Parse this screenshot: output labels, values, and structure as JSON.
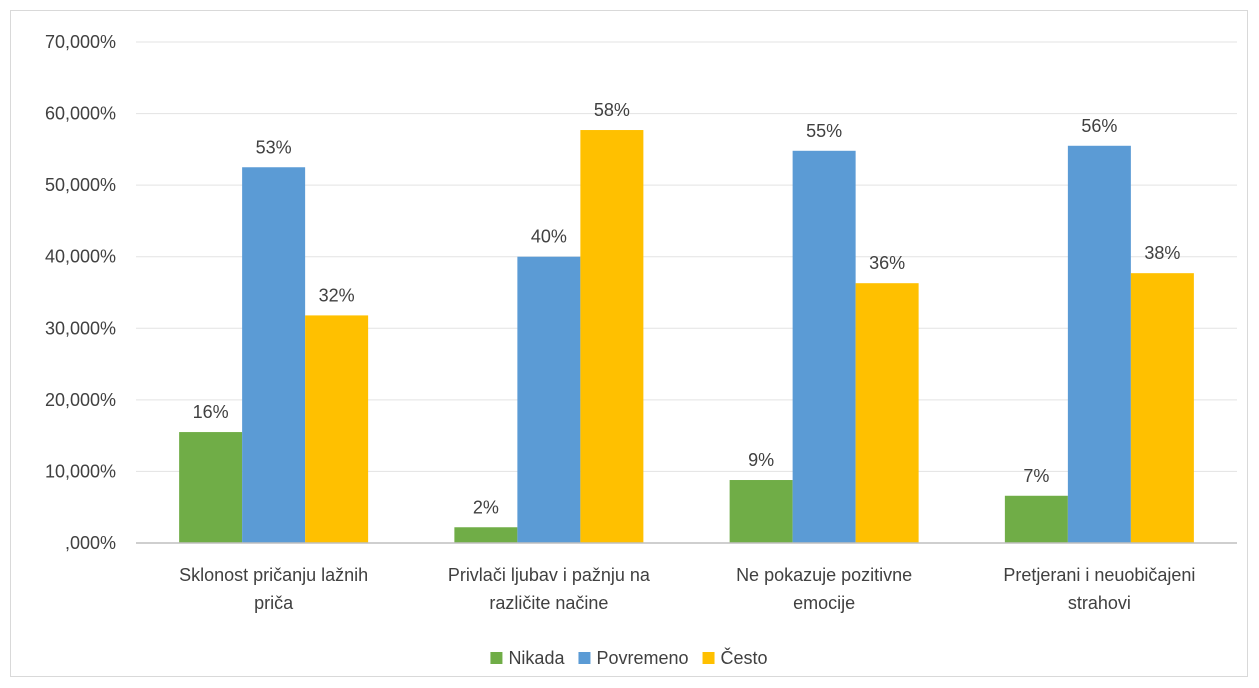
{
  "chart_data": {
    "type": "bar",
    "title": "",
    "xlabel": "",
    "ylabel": "",
    "categories": [
      [
        "Sklonost pričanju lažnih",
        "priča"
      ],
      [
        "Privlači ljubav i pažnju na",
        "različite načine"
      ],
      [
        "Ne pokazuje pozitivne",
        "emocije"
      ],
      [
        "Pretjerani i neuobičajeni",
        "strahovi"
      ]
    ],
    "series": [
      {
        "name": "Nikada",
        "color": "#70ad47",
        "values": [
          15.5,
          2.2,
          8.8,
          6.6
        ],
        "labels": [
          "16%",
          "2%",
          "9%",
          "7%"
        ]
      },
      {
        "name": "Povremeno",
        "color": "#5b9bd5",
        "values": [
          52.5,
          40.0,
          54.8,
          55.5
        ],
        "labels": [
          "53%",
          "40%",
          "55%",
          "56%"
        ]
      },
      {
        "name": "Često",
        "color": "#ffc000",
        "values": [
          31.8,
          57.7,
          36.3,
          37.7
        ],
        "labels": [
          "32%",
          "58%",
          "36%",
          "38%"
        ]
      }
    ],
    "ylim": [
      0,
      70
    ],
    "yticks": [
      0,
      10,
      20,
      30,
      40,
      50,
      60,
      70
    ],
    "ytick_labels": [
      ",000%",
      "10,000%",
      "20,000%",
      "30,000%",
      "40,000%",
      "50,000%",
      "60,000%",
      "70,000%"
    ],
    "grid": true,
    "legend_position": "bottom"
  }
}
